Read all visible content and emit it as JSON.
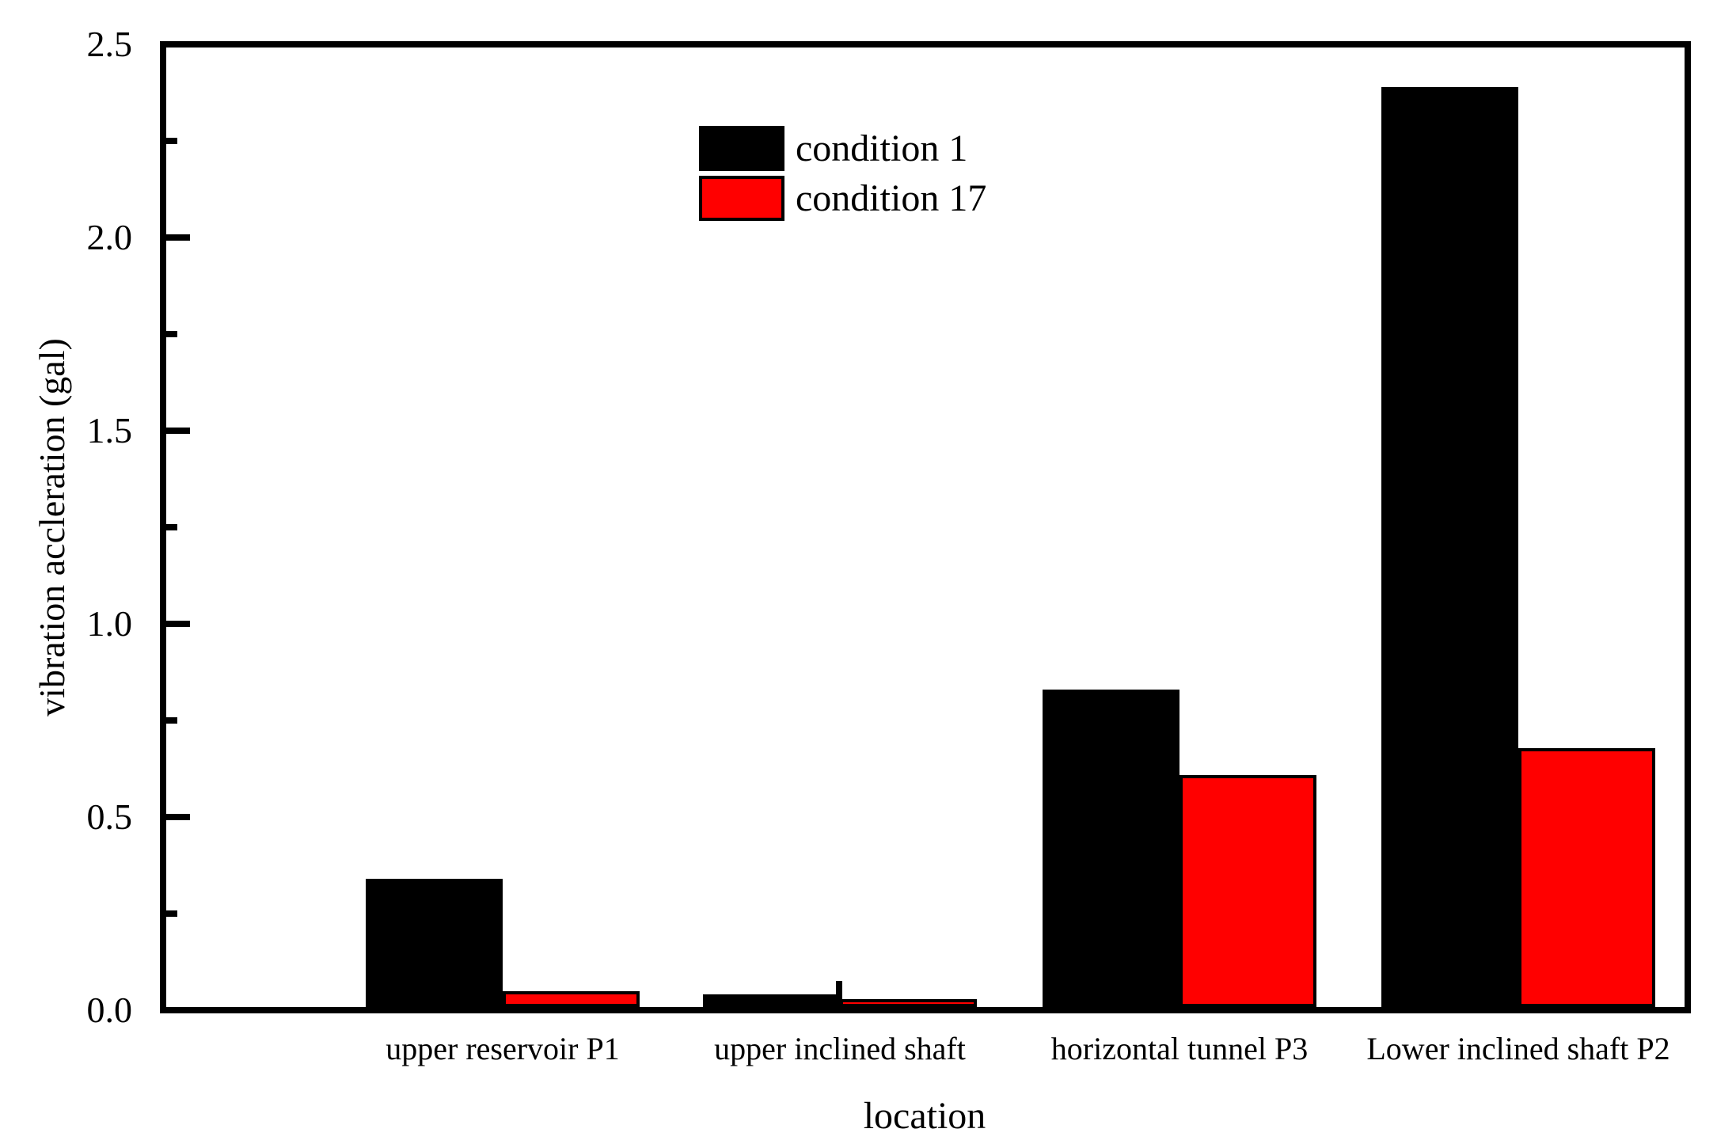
{
  "chart_data": {
    "type": "bar",
    "title": "",
    "xlabel": "location",
    "ylabel": "vibration accleration (gal)",
    "categories": [
      "upper reservoir P1",
      "upper inclined shaft",
      "horizontal tunnel P3",
      "Lower inclined shaft P2"
    ],
    "series": [
      {
        "name": "condition 1",
        "color": "#000000",
        "values": [
          0.34,
          0.04,
          0.83,
          2.39
        ]
      },
      {
        "name": "condition 17",
        "color": "#ff0000",
        "values": [
          0.04,
          0.02,
          0.6,
          0.67
        ]
      }
    ],
    "ylim": [
      0,
      2.5
    ],
    "y_tick_labels": [
      "0.0",
      "0.5",
      "1.0",
      "1.5",
      "2.0",
      "2.5"
    ],
    "y_major_tick_step": 0.5,
    "y_minor_tick_step": 0.25,
    "tick_direction": "in",
    "grid": false,
    "legend_position": "upper center-left, no frame",
    "bar_outline_color": "#000000",
    "anomaly_spike": {
      "category_index": 1,
      "value": 0.068
    }
  }
}
